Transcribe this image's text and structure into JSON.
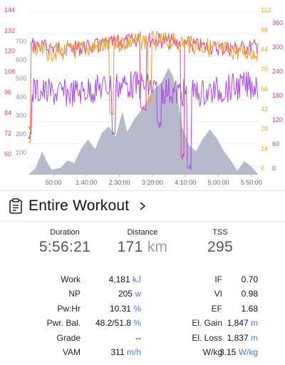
{
  "chart_data": {
    "type": "line",
    "x_ticks": [
      "50:00",
      "1:40:00",
      "2:30:00",
      "3:20:00",
      "4:10:00",
      "5:00:00",
      "5:50:00"
    ],
    "axes": {
      "hr_left": {
        "ticks": [
          "144",
          "132",
          "120",
          "108",
          "96",
          "84",
          "72",
          "60"
        ],
        "color": "#d43f86"
      },
      "power_left": {
        "ticks": [
          "700",
          "600",
          "500",
          "400",
          "300",
          "200",
          "100"
        ],
        "color": "#8a8fa0"
      },
      "cadence_right": {
        "ticks": [
          "112",
          "98",
          "84",
          "70",
          "56",
          "42",
          "28",
          "14",
          "0"
        ],
        "color": "#f2a233"
      },
      "speed_right": {
        "ticks": [
          "360",
          "300",
          "240",
          "180",
          "120",
          "60",
          "0"
        ],
        "color": "#c23f8d"
      }
    },
    "series": [
      {
        "color": "#aeb3c4",
        "style": "area"
      },
      {
        "color": "#d94f9b",
        "style": "line"
      },
      {
        "color": "#f2a233",
        "style": "line"
      },
      {
        "color": "#a84be0",
        "style": "line"
      }
    ]
  },
  "workout": {
    "title": "Entire Workout"
  },
  "summary": {
    "duration": {
      "label": "Duration",
      "value": "5:56:21"
    },
    "distance": {
      "label": "Distance",
      "value": "171",
      "unit": "km"
    },
    "tss": {
      "label": "TSS",
      "value": "295"
    }
  },
  "stats": [
    {
      "l_label": "Work",
      "l_value": "4,181",
      "l_unit": "kJ",
      "r_label": "IF",
      "r_value": "0.70",
      "r_unit": ""
    },
    {
      "l_label": "NP",
      "l_value": "205",
      "l_unit": "w",
      "r_label": "VI",
      "r_value": "0.98",
      "r_unit": ""
    },
    {
      "l_label": "Pw:Hr",
      "l_value": "10.31",
      "l_unit": "%",
      "r_label": "EF",
      "r_value": "1.68",
      "r_unit": ""
    },
    {
      "l_label": "Pwr. Bal.",
      "l_value": "48.2/51.8",
      "l_unit": "%",
      "r_label": "El. Gain",
      "r_value": "1,847",
      "r_unit": "m"
    },
    {
      "l_label": "Grade",
      "l_value": "--",
      "l_unit": "",
      "r_label": "El. Loss",
      "r_value": "1,837",
      "r_unit": "m"
    },
    {
      "l_label": "VAM",
      "l_value": "311",
      "l_unit": "m/h",
      "r_label": "W/kg",
      "r_value": "3.15",
      "r_unit": "W/kg"
    }
  ]
}
